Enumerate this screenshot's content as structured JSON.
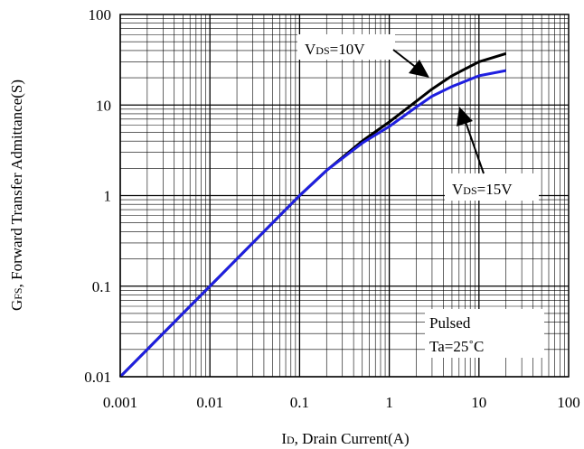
{
  "chart_data": {
    "type": "line",
    "x_scale": "log",
    "y_scale": "log",
    "xlim": [
      0.001,
      100
    ],
    "ylim": [
      0.01,
      100
    ],
    "x_ticks": [
      "0.001",
      "0.01",
      "0.1",
      "1",
      "10",
      "100"
    ],
    "y_ticks": [
      "100",
      "10",
      "1",
      "0.1",
      "0.01"
    ],
    "grid": true,
    "xlabel": {
      "main": "I",
      "sub": "D",
      "rest": ", Drain Current(A)"
    },
    "ylabel": {
      "main": "G",
      "sub": "FS",
      "rest": ", Forward Transfer Admittance(S)"
    },
    "series": [
      {
        "label_main": "V",
        "label_sub": "DS",
        "label_rest": "=10V",
        "color": "#000000",
        "x": [
          0.001,
          0.002,
          0.005,
          0.01,
          0.02,
          0.05,
          0.1,
          0.2,
          0.5,
          1,
          2,
          3,
          5,
          10,
          20
        ],
        "y": [
          0.01,
          0.02,
          0.05,
          0.1,
          0.2,
          0.5,
          1.0,
          1.9,
          4.0,
          6.5,
          11,
          15,
          21,
          30,
          37
        ]
      },
      {
        "label_main": "V",
        "label_sub": "DS",
        "label_rest": "=15V",
        "color": "#1f1fe0",
        "x": [
          0.001,
          0.002,
          0.005,
          0.01,
          0.02,
          0.05,
          0.1,
          0.2,
          0.5,
          1,
          2,
          3,
          5,
          10,
          20
        ],
        "y": [
          0.01,
          0.02,
          0.05,
          0.1,
          0.2,
          0.5,
          1.0,
          1.9,
          3.8,
          5.8,
          9.5,
          12.5,
          16,
          21,
          24
        ]
      }
    ],
    "annotation": {
      "line1": "Pulsed",
      "line2": "Ta=25˚C"
    }
  }
}
